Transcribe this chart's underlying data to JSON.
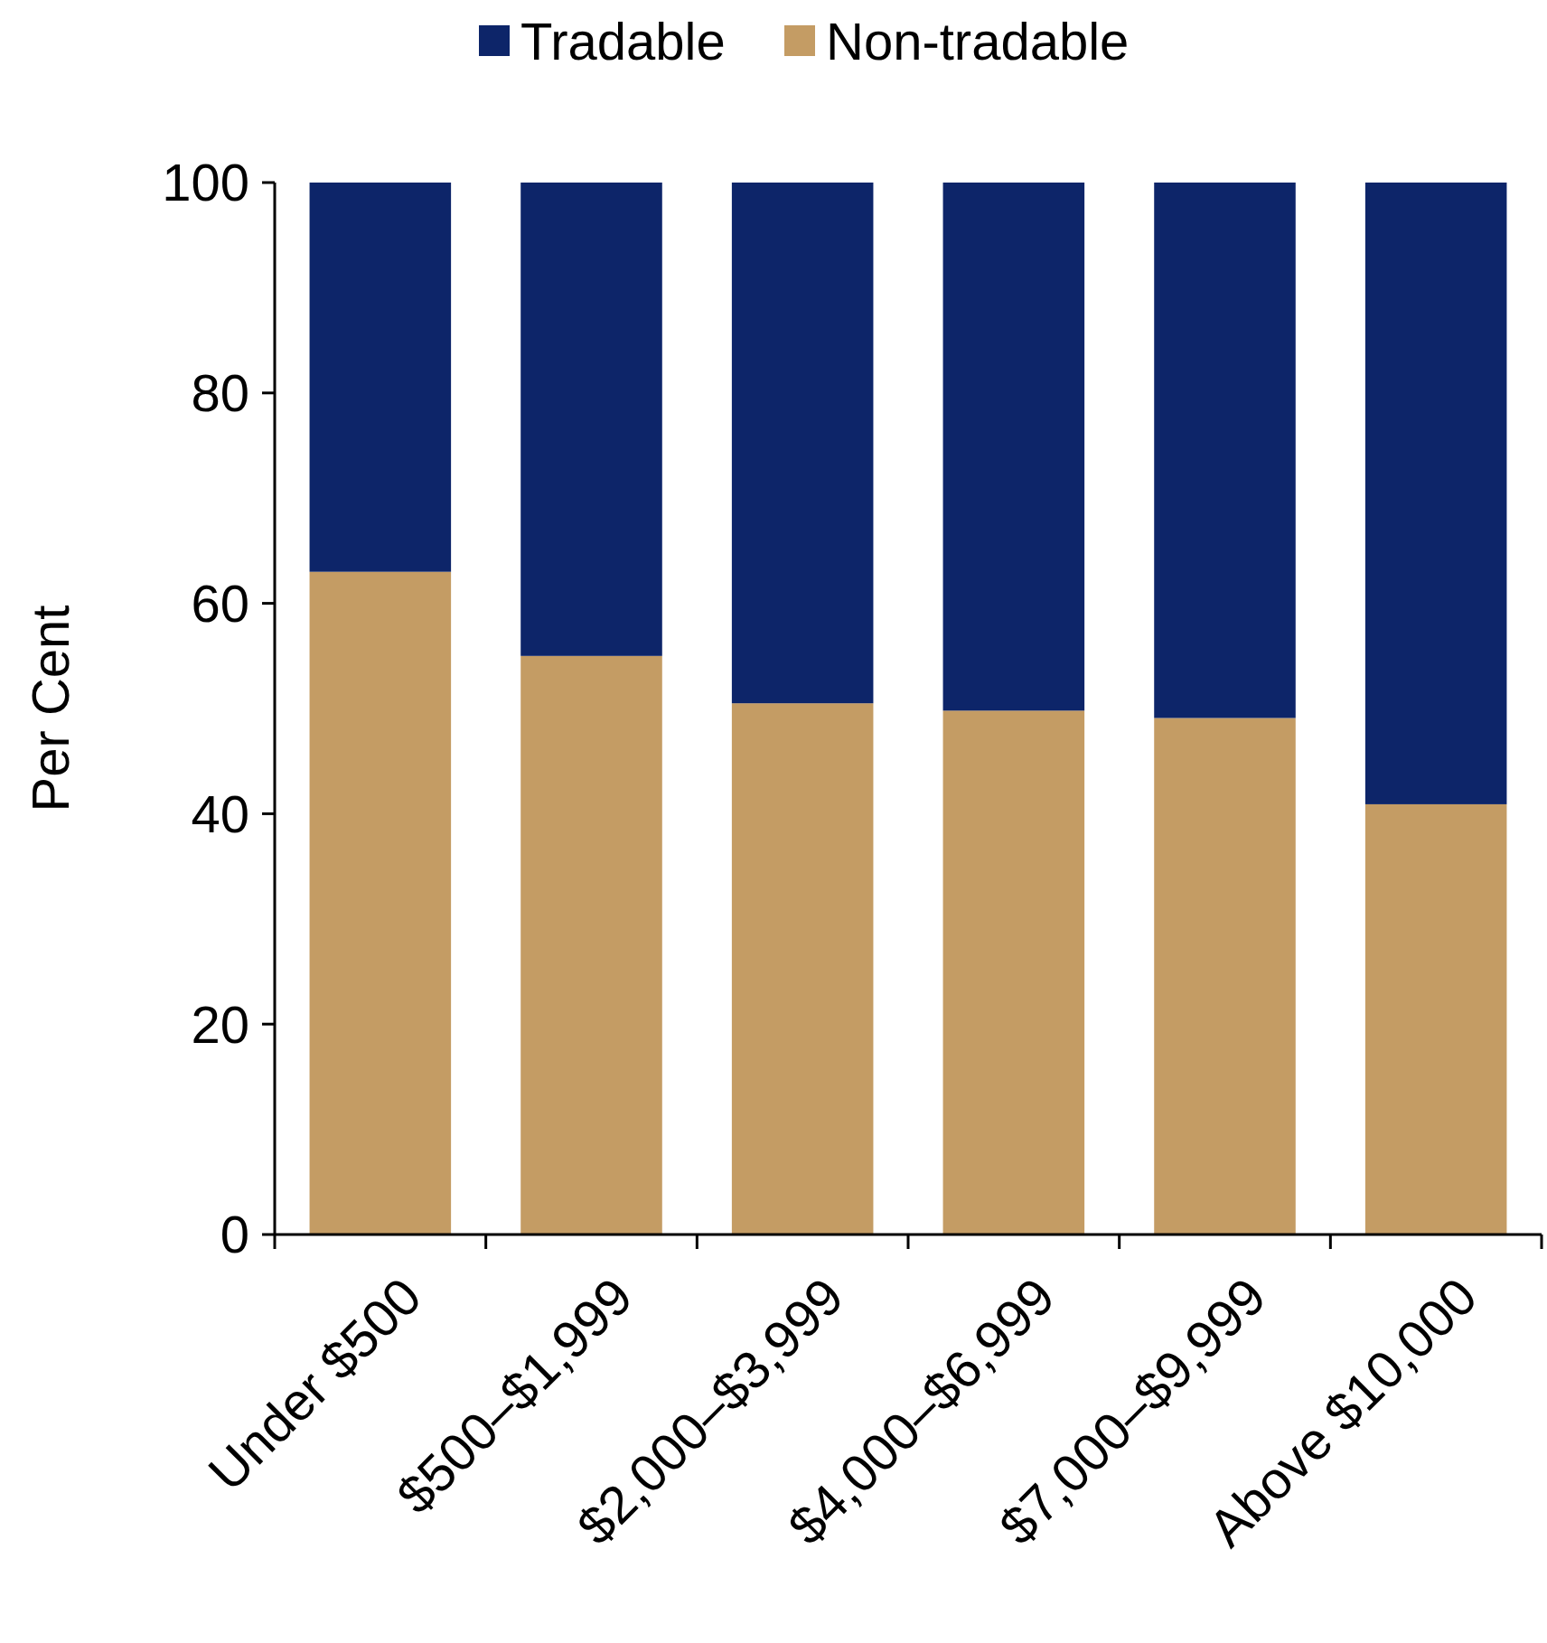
{
  "chart_data": {
    "type": "bar",
    "stacked": true,
    "ylabel": "Per Cent",
    "categories": [
      "Under $500",
      "$500–$1,999",
      "$2,000–$3,999",
      "$4,000–$6,999",
      "$7,000–$9,999",
      "Above $10,000"
    ],
    "series": [
      {
        "name": "Non-tradable",
        "color": "#c49c64",
        "values": [
          63,
          55,
          50.5,
          49.8,
          49.1,
          40.9
        ]
      },
      {
        "name": "Tradable",
        "color": "#0d2569",
        "values": [
          37,
          45,
          49.5,
          50.2,
          50.9,
          59.1
        ]
      }
    ],
    "ylim": [
      0,
      100
    ],
    "yticks": [
      0,
      20,
      40,
      60,
      80,
      100
    ],
    "legend": "top",
    "grid": false
  }
}
